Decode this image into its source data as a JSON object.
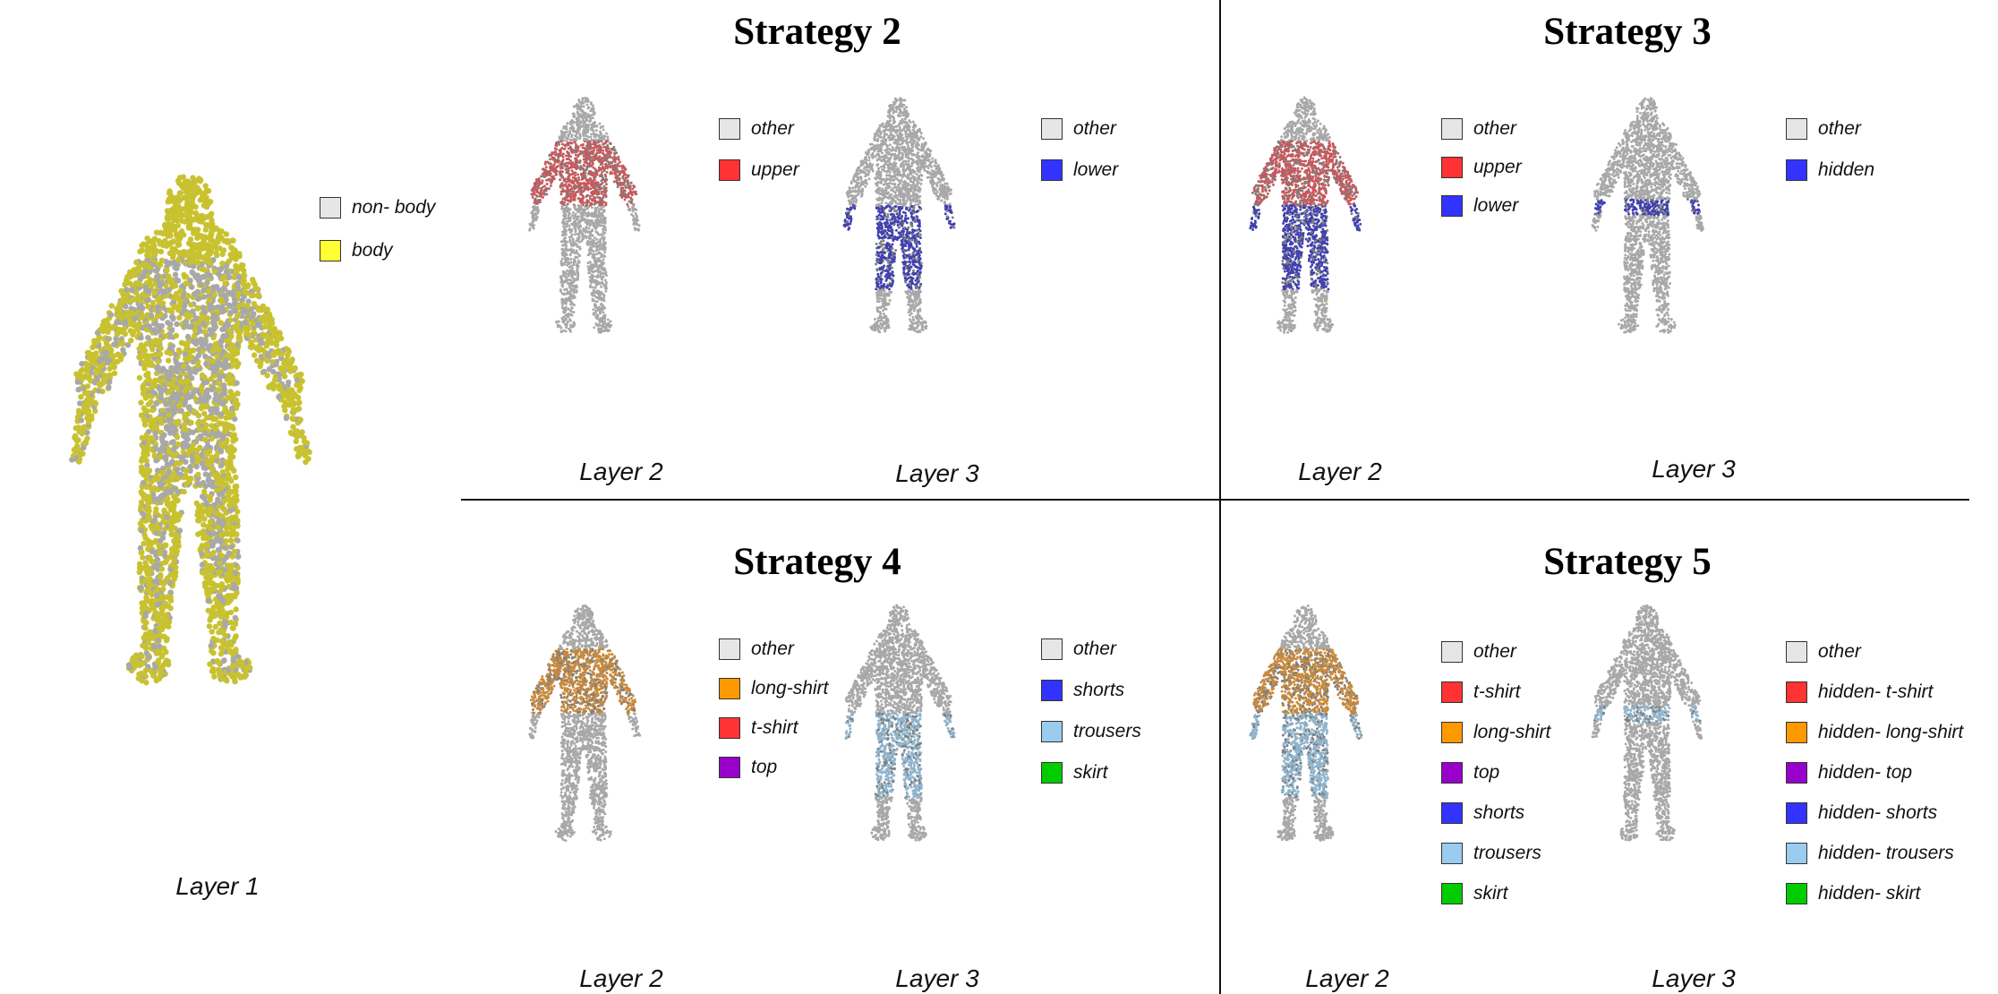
{
  "panels": {
    "layer1": {
      "caption": "Layer 1",
      "legend": [
        {
          "label": "non- body",
          "color": "#e6e6e6"
        },
        {
          "label": "body",
          "color": "#ffff33"
        }
      ]
    },
    "strategy2": {
      "title": "Strategy 2",
      "layer2": {
        "caption": "Layer 2",
        "legend": [
          {
            "label": "other",
            "color": "#e6e6e6"
          },
          {
            "label": "upper",
            "color": "#ff3333"
          }
        ]
      },
      "layer3": {
        "caption": "Layer 3",
        "legend": [
          {
            "label": "other",
            "color": "#e6e6e6"
          },
          {
            "label": "lower",
            "color": "#3333ff"
          }
        ]
      }
    },
    "strategy3": {
      "title": "Strategy 3",
      "layer2": {
        "caption": "Layer 2",
        "legend": [
          {
            "label": "other",
            "color": "#e6e6e6"
          },
          {
            "label": "upper",
            "color": "#ff3333"
          },
          {
            "label": "lower",
            "color": "#3333ff"
          }
        ]
      },
      "layer3": {
        "caption": "Layer 3",
        "legend": [
          {
            "label": "other",
            "color": "#e6e6e6"
          },
          {
            "label": "hidden",
            "color": "#3333ff"
          }
        ]
      }
    },
    "strategy4": {
      "title": "Strategy 4",
      "layer2": {
        "caption": "Layer 2",
        "legend": [
          {
            "label": "other",
            "color": "#e6e6e6"
          },
          {
            "label": "long-shirt",
            "color": "#ff9900"
          },
          {
            "label": "t-shirt",
            "color": "#ff3333"
          },
          {
            "label": "top",
            "color": "#9900cc"
          }
        ]
      },
      "layer3": {
        "caption": "Layer 3",
        "legend": [
          {
            "label": "other",
            "color": "#e6e6e6"
          },
          {
            "label": "shorts",
            "color": "#3333ff"
          },
          {
            "label": "trousers",
            "color": "#99ccee"
          },
          {
            "label": "skirt",
            "color": "#00cc00"
          }
        ]
      }
    },
    "strategy5": {
      "title": "Strategy 5",
      "layer2": {
        "caption": "Layer 2",
        "legend": [
          {
            "label": "other",
            "color": "#e6e6e6"
          },
          {
            "label": "t-shirt",
            "color": "#ff3333"
          },
          {
            "label": "long-shirt",
            "color": "#ff9900"
          },
          {
            "label": "top",
            "color": "#9900cc"
          },
          {
            "label": "shorts",
            "color": "#3333ff"
          },
          {
            "label": "trousers",
            "color": "#99ccee"
          },
          {
            "label": "skirt",
            "color": "#00cc00"
          }
        ]
      },
      "layer3": {
        "caption": "Layer 3",
        "legend": [
          {
            "label": "other",
            "color": "#e6e6e6"
          },
          {
            "label": "hidden- t-shirt",
            "color": "#ff3333"
          },
          {
            "label": "hidden- long-shirt",
            "color": "#ff9900"
          },
          {
            "label": "hidden- top",
            "color": "#9900cc"
          },
          {
            "label": "hidden- shorts",
            "color": "#3333ff"
          },
          {
            "label": "hidden- trousers",
            "color": "#99ccee"
          },
          {
            "label": "hidden- skirt",
            "color": "#00cc00"
          }
        ]
      }
    }
  },
  "figure_colors": {
    "point_gray": "#a8a8a8",
    "body_yellow": "#c9c230",
    "upper_red": "#c8585c",
    "lower_blue": "#4040b0",
    "shirt_orange": "#c88a3c",
    "trousers_lightblue": "#8fb4cc"
  }
}
